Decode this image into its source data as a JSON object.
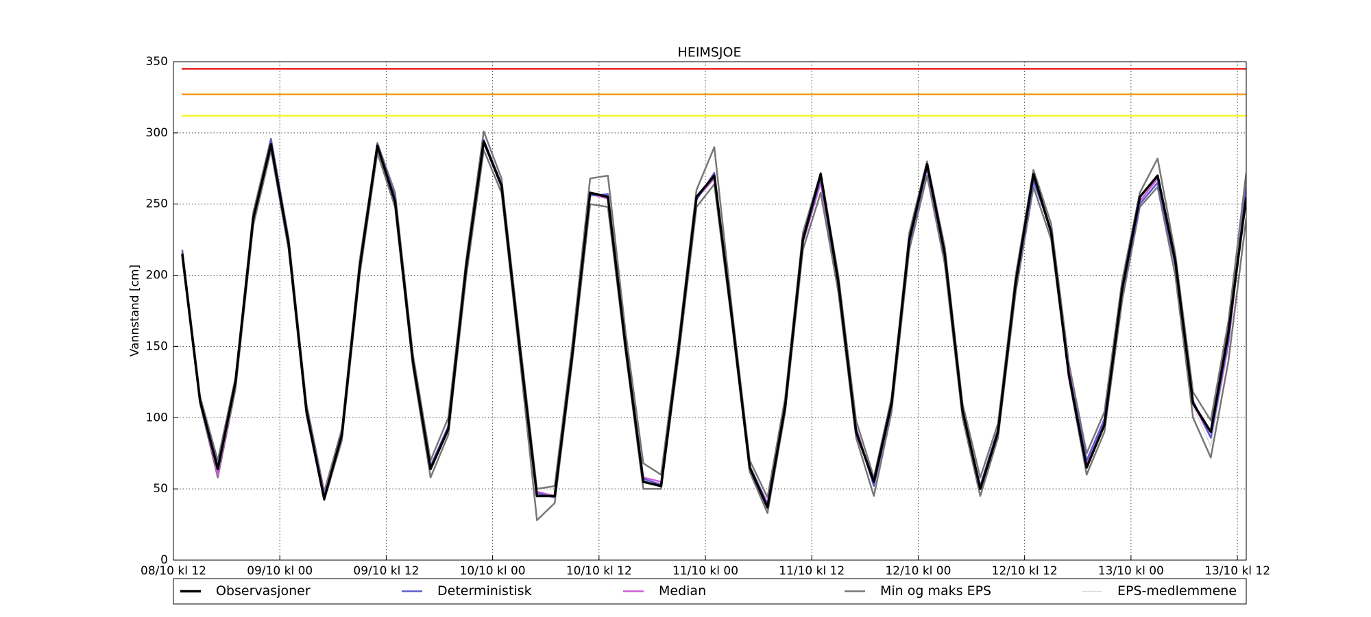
{
  "chart_data": {
    "type": "line",
    "title": "HEIMSJOE",
    "ylabel": "Vannstand [cm]",
    "x": [
      1,
      3,
      5,
      7,
      9,
      11,
      13,
      15,
      17,
      19,
      21,
      23,
      25,
      27,
      29,
      31,
      33,
      35,
      37,
      39,
      41,
      43,
      45,
      47,
      49,
      51,
      53,
      55,
      57,
      59,
      61,
      63,
      65,
      67,
      69,
      71,
      73,
      75,
      77,
      79,
      81,
      83,
      85,
      87,
      89,
      91,
      93,
      95,
      97,
      99,
      101,
      103,
      105,
      107,
      109,
      111,
      113,
      115,
      117,
      119,
      121
    ],
    "xlim": [
      0,
      121
    ],
    "xticks": [
      {
        "value": 0,
        "label": "08/10 kl 12"
      },
      {
        "value": 12,
        "label": "09/10 kl 00"
      },
      {
        "value": 24,
        "label": "09/10 kl 12"
      },
      {
        "value": 36,
        "label": "10/10 kl 00"
      },
      {
        "value": 48,
        "label": "10/10 kl 12"
      },
      {
        "value": 60,
        "label": "11/10 kl 00"
      },
      {
        "value": 72,
        "label": "11/10 kl 12"
      },
      {
        "value": 84,
        "label": "12/10 kl 00"
      },
      {
        "value": 96,
        "label": "12/10 kl 12"
      },
      {
        "value": 108,
        "label": "13/10 kl 00"
      },
      {
        "value": 120,
        "label": "13/10 kl 12"
      }
    ],
    "ylim": [
      0,
      350
    ],
    "yticks": [
      0,
      50,
      100,
      150,
      200,
      250,
      300,
      350
    ],
    "grid": true,
    "thresholds": [
      {
        "value": 345,
        "color": "#e8211f"
      },
      {
        "value": 327,
        "color": "#f59a12"
      },
      {
        "value": 312,
        "color": "#f5f526"
      }
    ],
    "series": [
      {
        "name": "Observasjoner",
        "color": "#000000",
        "width": 3.5,
        "values": [
          215,
          112,
          64,
          125,
          240,
          292,
          222,
          105,
          43,
          88,
          205,
          291,
          252,
          140,
          64,
          92,
          205,
          294,
          263,
          152,
          45,
          45,
          145,
          258,
          255,
          150,
          55,
          52,
          150,
          255,
          270,
          170,
          65,
          37,
          108,
          225,
          271,
          195,
          90,
          55,
          110,
          225,
          278,
          215,
          105,
          50,
          90,
          195,
          271,
          230,
          130,
          65,
          95,
          190,
          255,
          270,
          210,
          110,
          90,
          160,
          255
        ]
      },
      {
        "name": "Deterministisk",
        "color": "#5b5bd1",
        "width": 2.5,
        "values": [
          217,
          113,
          66,
          124,
          238,
          295,
          224,
          107,
          45,
          86,
          203,
          292,
          255,
          141,
          66,
          94,
          203,
          295,
          264,
          150,
          47,
          44,
          146,
          256,
          257,
          152,
          57,
          53,
          148,
          253,
          272,
          172,
          66,
          39,
          107,
          224,
          268,
          193,
          92,
          52,
          108,
          222,
          276,
          214,
          104,
          52,
          92,
          193,
          266,
          232,
          132,
          70,
          99,
          188,
          250,
          265,
          207,
          112,
          86,
          155,
          262
        ]
      },
      {
        "name": "Median",
        "color": "#cc5bd6",
        "width": 2.5,
        "values": [
          216,
          112,
          60,
          124,
          240,
          293,
          223,
          106,
          46,
          87,
          205,
          290,
          253,
          142,
          65,
          93,
          204,
          293,
          262,
          151,
          48,
          45,
          146,
          257,
          254,
          152,
          58,
          55,
          150,
          254,
          268,
          171,
          66,
          40,
          108,
          223,
          265,
          195,
          93,
          53,
          110,
          224,
          275,
          213,
          104,
          52,
          91,
          194,
          268,
          230,
          134,
          68,
          98,
          188,
          252,
          268,
          209,
          110,
          86,
          152,
          263
        ]
      },
      {
        "name": "Min og maks EPS",
        "color": "#777777",
        "width": 2.5,
        "min": [
          212,
          110,
          58,
          120,
          235,
          288,
          218,
          102,
          42,
          84,
          200,
          286,
          248,
          136,
          58,
          88,
          198,
          288,
          258,
          146,
          28,
          40,
          140,
          250,
          248,
          146,
          50,
          50,
          144,
          248,
          264,
          166,
          62,
          33,
          104,
          218,
          258,
          188,
          86,
          45,
          104,
          218,
          270,
          208,
          100,
          45,
          86,
          188,
          262,
          225,
          128,
          60,
          90,
          182,
          248,
          262,
          200,
          100,
          72,
          140,
          240
        ],
        "max": [
          218,
          115,
          70,
          128,
          244,
          296,
          226,
          110,
          48,
          92,
          210,
          293,
          258,
          145,
          70,
          100,
          210,
          301,
          268,
          158,
          50,
          52,
          152,
          268,
          270,
          160,
          68,
          60,
          155,
          260,
          290,
          176,
          70,
          44,
          114,
          230,
          272,
          200,
          98,
          58,
          114,
          230,
          280,
          220,
          110,
          58,
          96,
          200,
          274,
          236,
          138,
          75,
          104,
          196,
          258,
          282,
          215,
          118,
          98,
          168,
          272
        ]
      },
      {
        "name": "EPS-medlemmene",
        "color": "#d4d4d4",
        "width": 1.2,
        "values": [
          215,
          112,
          62,
          123,
          238,
          292,
          222,
          105,
          45,
          86,
          204,
          291,
          253,
          140,
          64,
          93,
          204,
          294,
          263,
          150,
          46,
          44,
          145,
          257,
          256,
          151,
          56,
          54,
          149,
          254,
          270,
          170,
          65,
          38,
          107,
          224,
          266,
          194,
          92,
          52,
          109,
          223,
          275,
          214,
          104,
          51,
          90,
          193,
          267,
          229,
          132,
          67,
          96,
          187,
          250,
          266,
          206,
          108,
          80,
          150,
          258
        ]
      }
    ]
  }
}
